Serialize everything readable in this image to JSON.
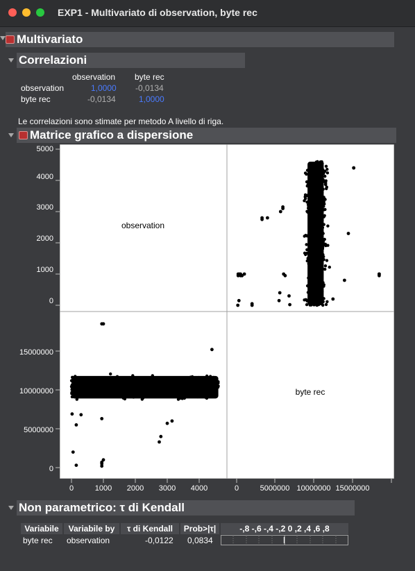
{
  "window": {
    "title": "EXP1 - Multivariato di observation, byte rec"
  },
  "sections": {
    "multivariato": "Multivariato",
    "correlazioni": "Correlazioni",
    "scatter_matrix": "Matrice grafico a dispersione",
    "nonparam": "Non parametrico: τ di Kendall"
  },
  "correlation": {
    "columns": [
      "observation",
      "byte rec"
    ],
    "rows": [
      {
        "label": "observation",
        "values": [
          "1,0000",
          "-0,0134"
        ]
      },
      {
        "label": "byte rec",
        "values": [
          "-0,0134",
          "1,0000"
        ]
      }
    ],
    "note": "Le correlazioni sono stimate per metodo A livello di riga."
  },
  "chart_data": {
    "type": "scatter",
    "variables": [
      "observation",
      "byte rec"
    ],
    "observation_axis": {
      "range": [
        0,
        5000
      ],
      "ticks": [
        "0",
        "1000",
        "2000",
        "3000",
        "4000",
        "5000"
      ]
    },
    "byte_rec_axis": {
      "range": [
        -1000000,
        19000000
      ],
      "y_ticks": [
        "0",
        "5000000",
        "10000000",
        "15000000"
      ],
      "x_ticks": [
        "0",
        "5000000",
        "10000000",
        "15000000"
      ]
    },
    "cloud": {
      "observation_range": [
        0,
        4600
      ],
      "byte_rec_range": [
        8500000,
        12500000
      ]
    },
    "outliers": [
      [
        20,
        6900000
      ],
      [
        50,
        2000000
      ],
      [
        150,
        300000
      ],
      [
        150,
        5500000
      ],
      [
        300,
        6800000
      ],
      [
        950,
        200000
      ],
      [
        950,
        500000
      ],
      [
        950,
        700000
      ],
      [
        950,
        6300000
      ],
      [
        950,
        18500000
      ],
      [
        2750,
        3300000
      ],
      [
        3000,
        5700000
      ],
      [
        4400,
        15200000
      ],
      [
        1000,
        1000000
      ],
      [
        1000,
        18500000
      ],
      [
        2800,
        4000000
      ],
      [
        3150,
        6000000
      ]
    ],
    "grid": false
  },
  "kendall": {
    "headers": [
      "Variabile",
      "Variabile by",
      "τ di Kendall",
      "Prob>|τ|",
      "-,8 -,6 -,4 -,2  0  ,2  ,4  ,6  ,8"
    ],
    "rows": [
      {
        "var": "byte rec",
        "by": "observation",
        "tau": -0.0122,
        "tau_text": "-0,0122",
        "prob": "0,0834"
      }
    ]
  }
}
